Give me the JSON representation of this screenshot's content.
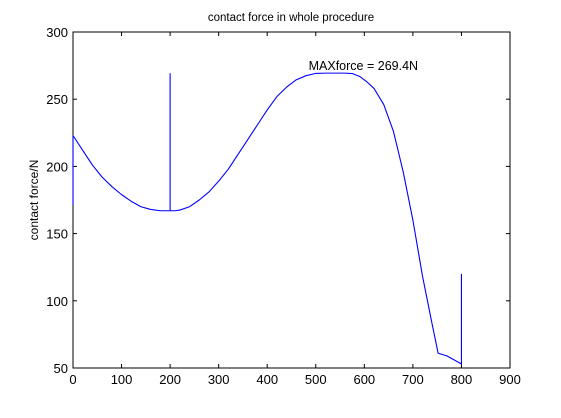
{
  "chart_data": {
    "type": "line",
    "title": "contact force in whole procedure",
    "xlabel": "",
    "ylabel": "contact force/N",
    "xlim": [
      0,
      900
    ],
    "ylim": [
      50,
      300
    ],
    "xticks": [
      0,
      100,
      200,
      300,
      400,
      500,
      600,
      700,
      800,
      900
    ],
    "yticks": [
      50,
      100,
      150,
      200,
      250,
      300
    ],
    "grid": false,
    "line_color": "#0000ff",
    "annotation": {
      "text": "MAXforce = 269.4N",
      "x": 545,
      "y": 269.4
    },
    "series": [
      {
        "x": [
          0,
          0,
          0,
          0,
          0,
          20,
          40,
          60,
          80,
          100,
          120,
          140,
          160,
          180,
          195,
          200,
          200,
          200,
          200,
          200,
          200,
          205,
          210,
          220,
          240,
          260,
          280,
          300,
          320,
          340,
          360,
          380,
          400,
          420,
          440,
          460,
          480,
          500,
          520,
          540,
          560,
          575,
          590,
          605,
          620,
          640,
          660,
          680,
          700,
          720,
          740,
          752,
          770,
          790,
          800,
          800,
          800
        ],
        "y": [
          171,
          223,
          223,
          222,
          223,
          212,
          201,
          192,
          185,
          179,
          174,
          170,
          168,
          167,
          167,
          167,
          269,
          167,
          217,
          167,
          167,
          167,
          167,
          167.5,
          170,
          175,
          181,
          189,
          198,
          209,
          220,
          231,
          242,
          252,
          259,
          264.5,
          267.5,
          269.2,
          269.4,
          269.4,
          269.4,
          269.1,
          267,
          263,
          258,
          246,
          226,
          196,
          160,
          118,
          82,
          61,
          59,
          55,
          53,
          84,
          120
        ]
      }
    ]
  }
}
